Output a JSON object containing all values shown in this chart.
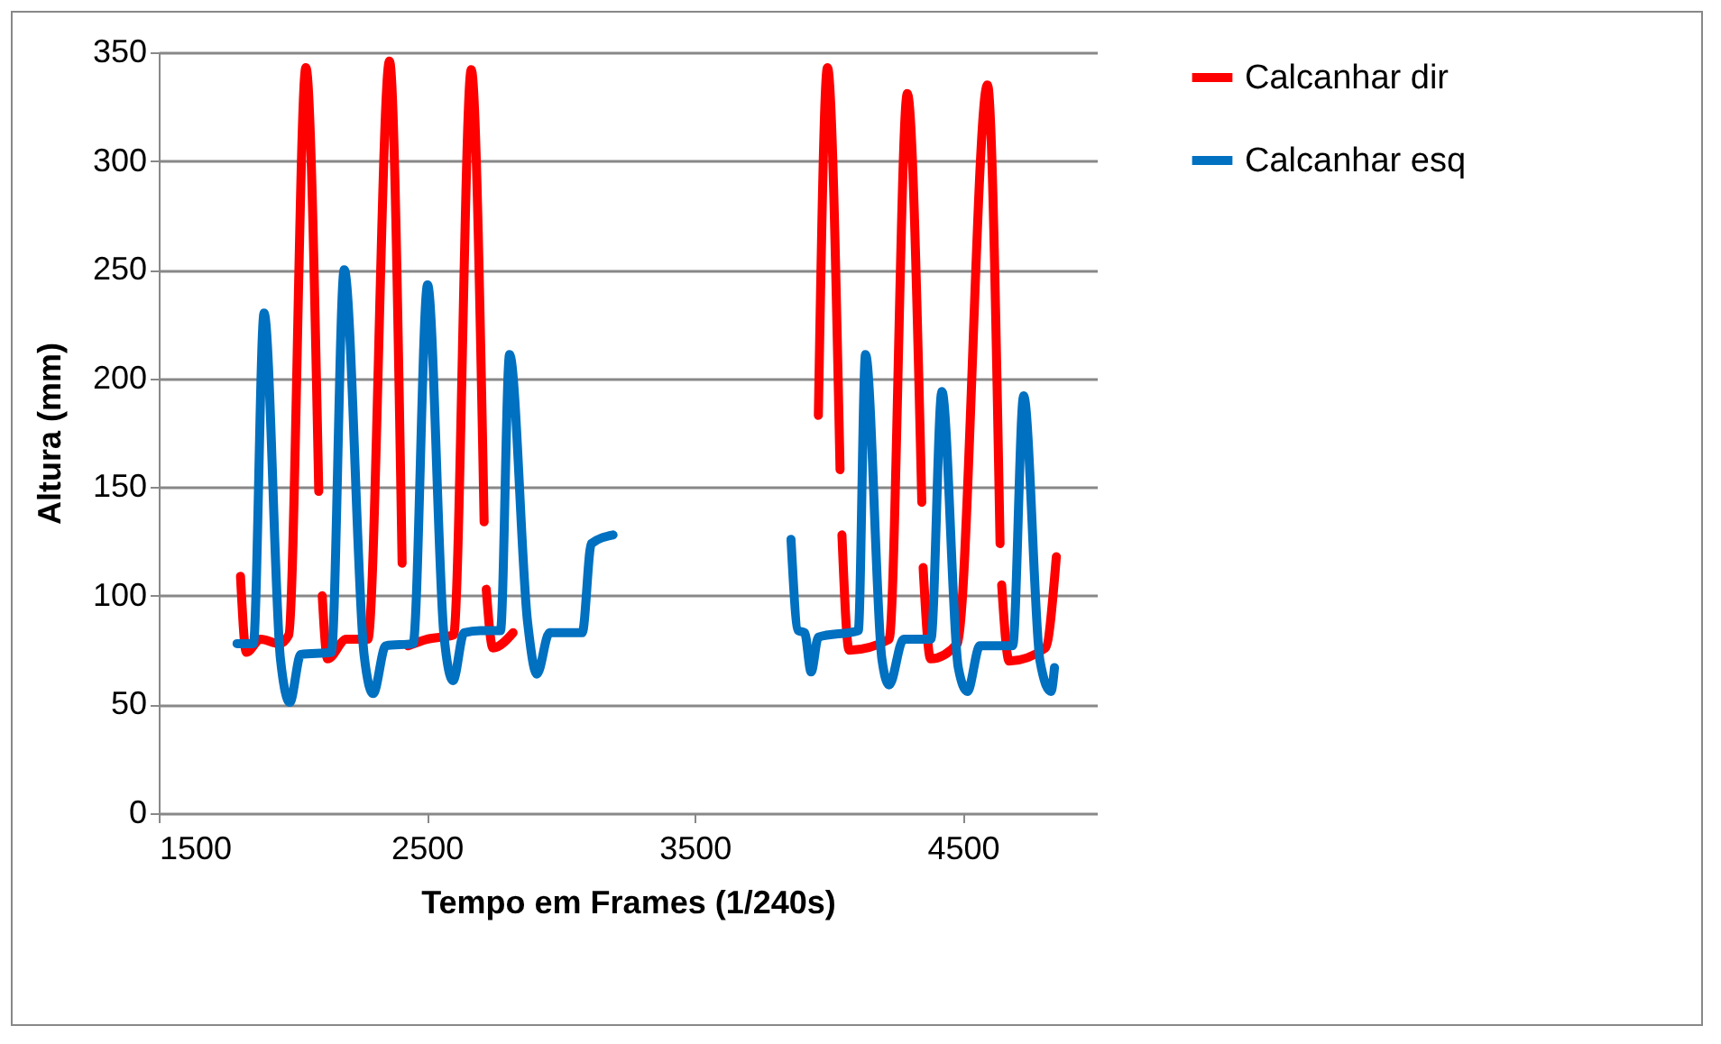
{
  "chart_data": {
    "type": "line",
    "xlabel": "Tempo em Frames (1/240s)",
    "ylabel": "Altura (mm)",
    "xlim": [
      1500,
      5000
    ],
    "xticks": [
      1500,
      2500,
      3500,
      4500
    ],
    "ylim": [
      0,
      350
    ],
    "yticks": [
      0,
      50,
      100,
      150,
      200,
      250,
      300,
      350
    ],
    "grid": "y",
    "legend": "right",
    "marker": "none",
    "line_style": "solid",
    "series": [
      {
        "name": "Calcanhar dir",
        "color": "#ff0000",
        "x": [
          1805,
          1827,
          1880,
          1950,
          1985,
          2049,
          2097,
          2103,
          2110,
          2130,
          2200,
          2280,
          2361,
          2408,
          2415,
          2430,
          2500,
          2600,
          2666,
          2714,
          2720,
          2722,
          2747,
          2822,
          3500,
          3961,
          3995,
          4042,
          4045,
          4049,
          4076,
          4225,
          4293,
          4347,
          4350,
          4352,
          4380,
          4480,
          4592,
          4639,
          4642,
          4645,
          4673,
          4808,
          4849
        ],
        "values": [
          109,
          74,
          80,
          78,
          82,
          343,
          148,
          null,
          100,
          71,
          80,
          80,
          346,
          115,
          null,
          77,
          80,
          82,
          342,
          134,
          null,
          103,
          76,
          83,
          null,
          183,
          343,
          158,
          null,
          128,
          75,
          80,
          331,
          143,
          null,
          113,
          71,
          78,
          335,
          124,
          null,
          105,
          70,
          76,
          118
        ]
      },
      {
        "name": "Calcanhar esq",
        "color": "#0070c0",
        "x": [
          1792,
          1853,
          1893,
          1954,
          1989,
          2030,
          2144,
          2192,
          2266,
          2300,
          2347,
          2449,
          2503,
          2564,
          2598,
          2639,
          2700,
          2775,
          2809,
          2876,
          2911,
          2958,
          3080,
          3114,
          3195,
          3500,
          3859,
          3886,
          3910,
          3934,
          3961,
          4110,
          4137,
          4198,
          4225,
          4279,
          4381,
          4422,
          4483,
          4517,
          4564,
          4686,
          4727,
          4788,
          4829,
          4842
        ],
        "values": [
          78,
          78,
          230,
          71,
          51,
          73,
          74,
          250,
          73,
          55,
          77,
          78,
          243,
          82,
          61,
          83,
          84,
          84,
          211,
          88,
          64,
          83,
          83,
          124,
          128,
          null,
          126,
          84,
          83,
          65,
          81,
          84,
          211,
          71,
          59,
          80,
          80,
          194,
          67,
          56,
          77,
          77,
          192,
          70,
          56,
          67
        ]
      }
    ]
  }
}
